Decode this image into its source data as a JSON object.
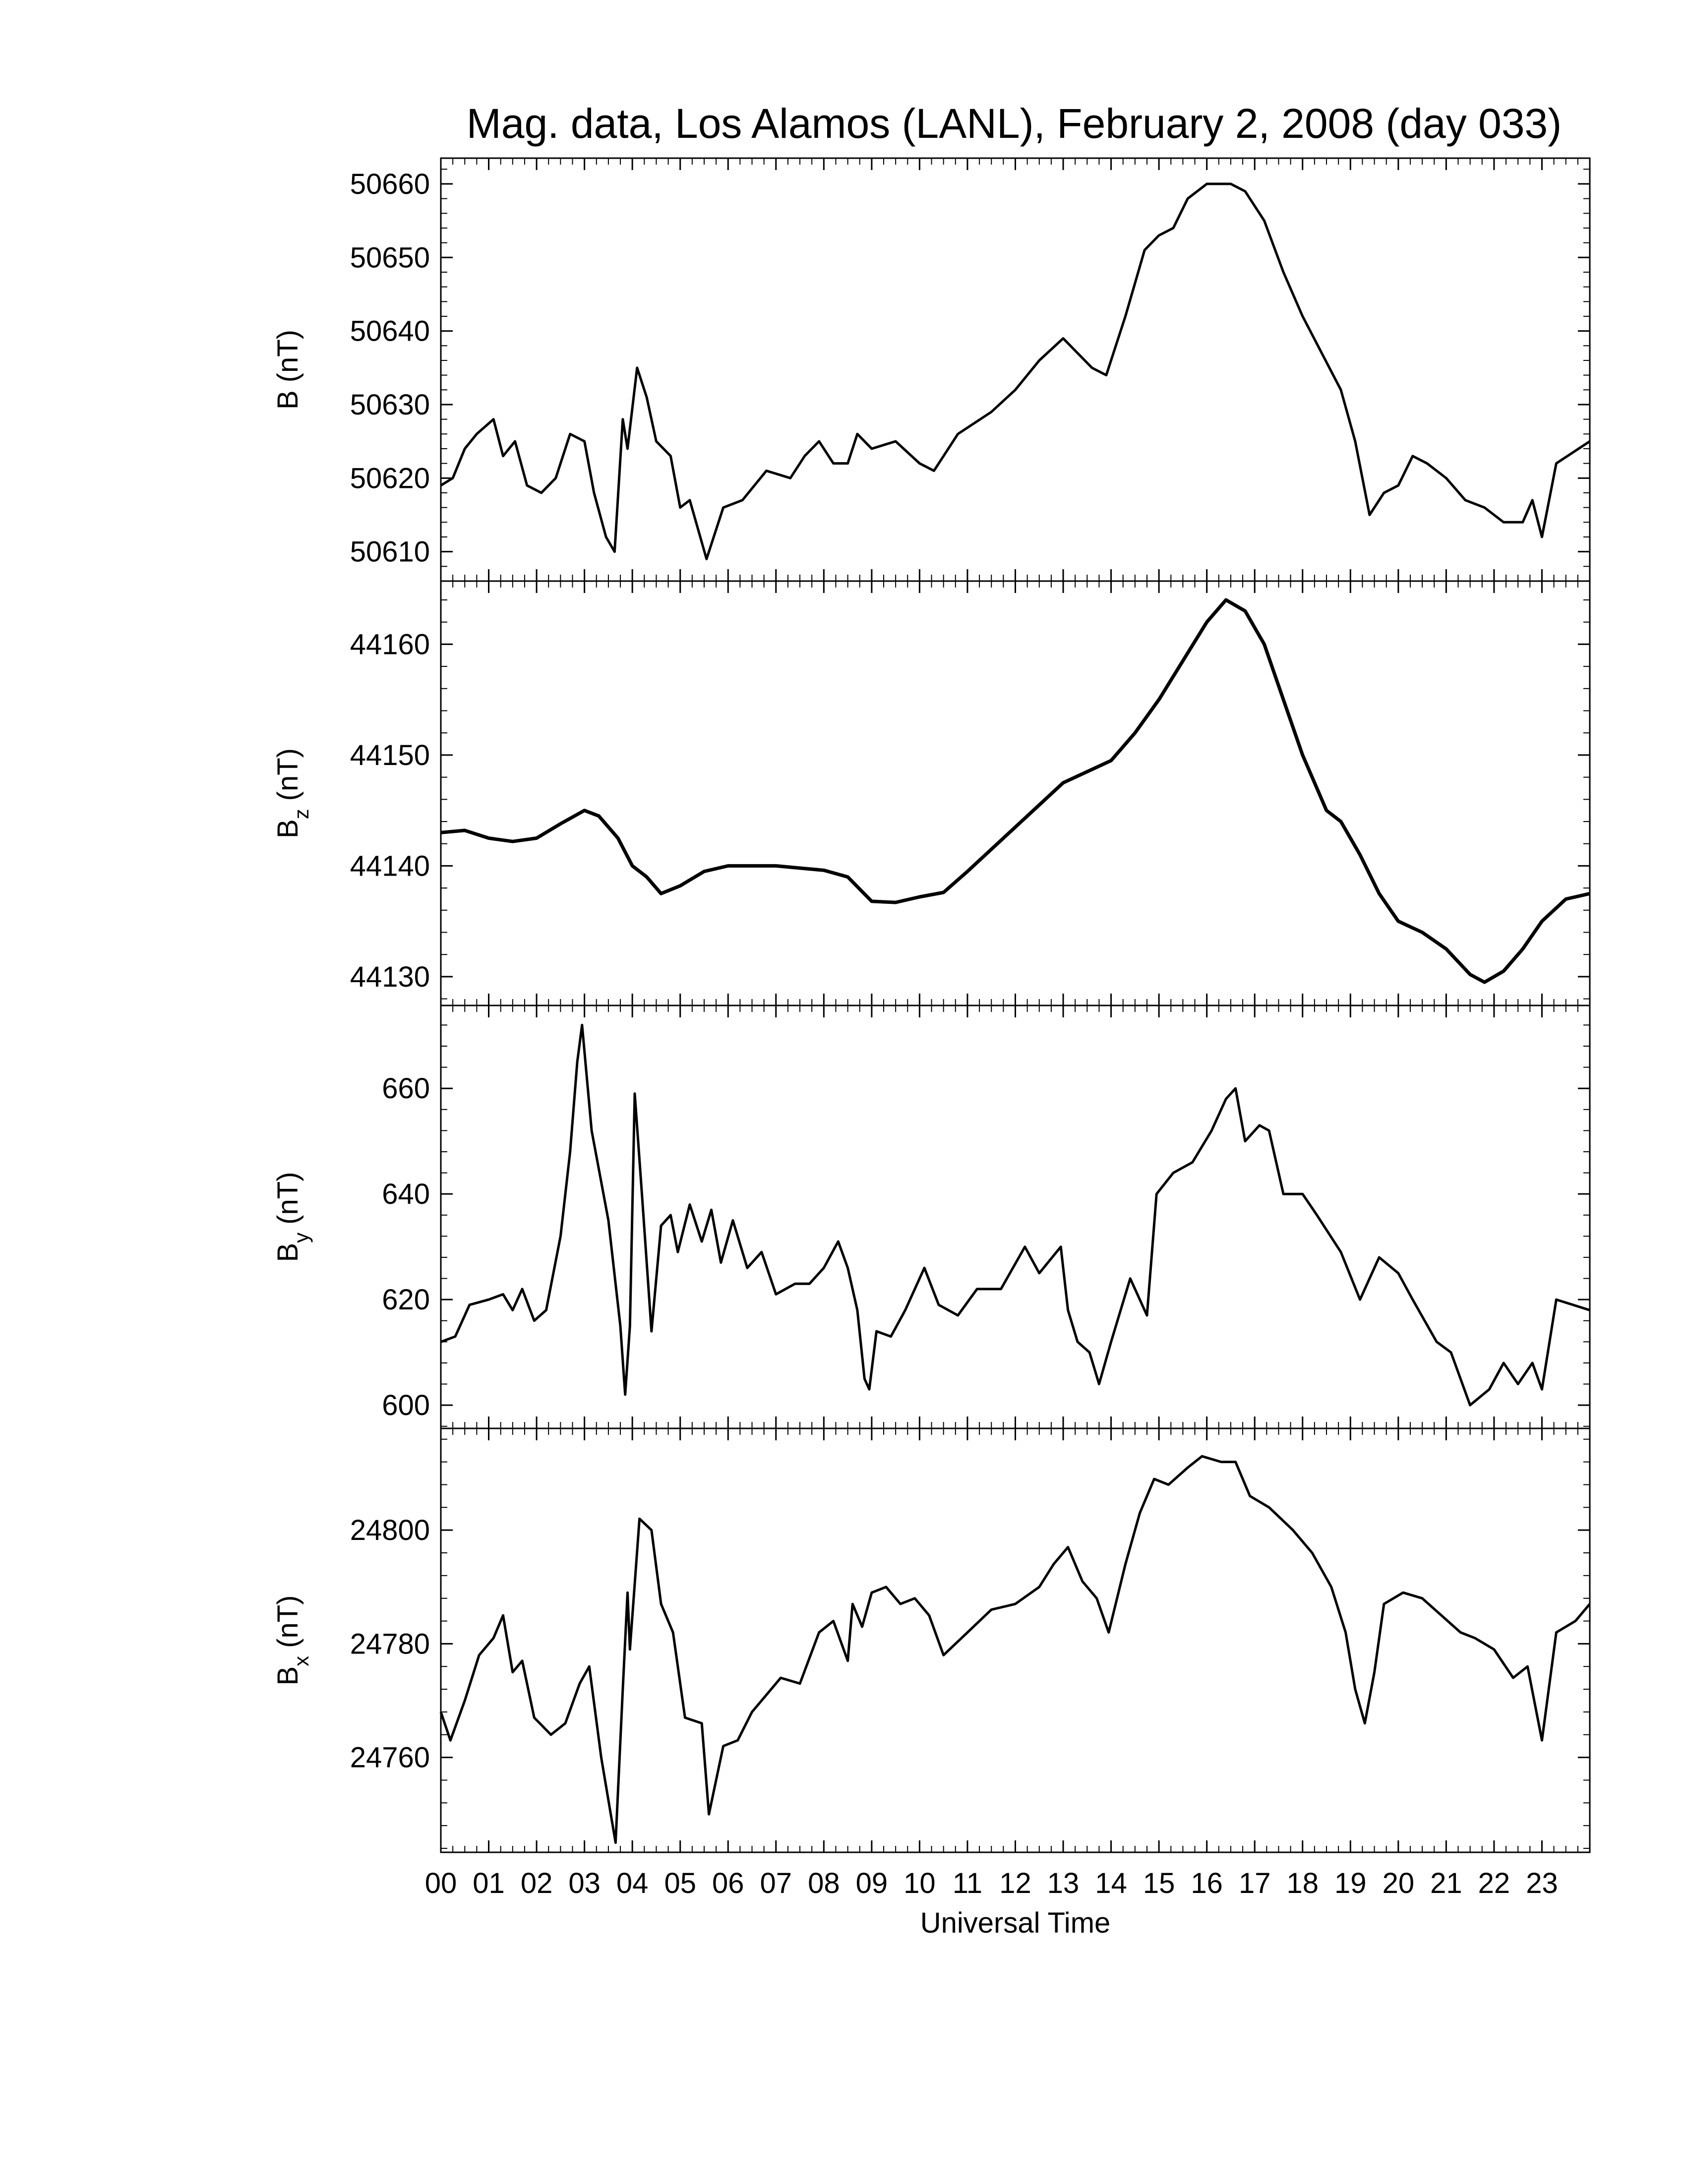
{
  "chart_data": [
    {
      "type": "line",
      "title": "Mag. data, Los Alamos (LANL), February 2, 2008 (day 033)",
      "ylabel_symbol": "B",
      "ylabel_unit": "(nT)",
      "color": "#000000",
      "xlim": [
        0,
        24
      ],
      "ylim": [
        50606,
        50663.5
      ],
      "yticks": [
        50610,
        50620,
        50630,
        50640,
        50650,
        50660
      ],
      "x": [
        0,
        0.25,
        0.5,
        0.75,
        1.1,
        1.3,
        1.55,
        1.8,
        2.1,
        2.4,
        2.7,
        3.0,
        3.2,
        3.45,
        3.63,
        3.8,
        3.9,
        4.1,
        4.3,
        4.5,
        4.8,
        5.0,
        5.2,
        5.55,
        5.9,
        6.3,
        6.8,
        7.3,
        7.6,
        7.9,
        8.2,
        8.5,
        8.7,
        9.0,
        9.5,
        10.0,
        10.3,
        10.8,
        11.5,
        12.0,
        12.5,
        13.0,
        13.3,
        13.6,
        13.9,
        14.3,
        14.7,
        15.0,
        15.3,
        15.6,
        16.0,
        16.5,
        16.8,
        17.2,
        17.6,
        18.0,
        18.4,
        18.8,
        19.1,
        19.4,
        19.7,
        20.0,
        20.3,
        20.6,
        21.0,
        21.4,
        21.8,
        22.2,
        22.6,
        22.8,
        23.0,
        23.3,
        24
      ],
      "values": [
        50619,
        50620,
        50624,
        50626,
        50628,
        50623,
        50625,
        50619,
        50618,
        50620,
        50626,
        50625,
        50618,
        50612,
        50610,
        50628,
        50624,
        50635,
        50631,
        50625,
        50623,
        50616,
        50617,
        50609,
        50616,
        50617,
        50621,
        50620,
        50623,
        50625,
        50622,
        50622,
        50626,
        50624,
        50625,
        50622,
        50621,
        50626,
        50629,
        50632,
        50636,
        50639,
        50637,
        50635,
        50634,
        50642,
        50651,
        50653,
        50654,
        50658,
        50660,
        50660,
        50659,
        50655,
        50648,
        50642,
        50637,
        50632,
        50625,
        50615,
        50618,
        50619,
        50623,
        50622,
        50620,
        50617,
        50616,
        50614,
        50614,
        50617,
        50612,
        50622,
        50625
      ]
    },
    {
      "type": "line",
      "ylabel_symbol": "B",
      "ylabel_subscript": "z",
      "ylabel_unit": "(nT)",
      "color": "#000000",
      "xlim": [
        0,
        24
      ],
      "ylim": [
        44127.4,
        44165.7
      ],
      "yticks": [
        44130,
        44140,
        44150,
        44160
      ],
      "x": [
        0,
        0.5,
        1.0,
        1.5,
        2.0,
        2.5,
        3.0,
        3.3,
        3.7,
        4.0,
        4.3,
        4.6,
        5.0,
        5.5,
        6.0,
        6.5,
        7.0,
        7.5,
        8.0,
        8.5,
        9.0,
        9.5,
        10.0,
        10.5,
        11.0,
        11.5,
        12.0,
        12.5,
        13.0,
        13.5,
        14.0,
        14.5,
        15.0,
        15.5,
        16.0,
        16.4,
        16.8,
        17.2,
        17.6,
        18.0,
        18.5,
        18.8,
        19.2,
        19.6,
        20.0,
        20.5,
        21.0,
        21.5,
        21.8,
        22.2,
        22.6,
        23.0,
        23.5,
        24
      ],
      "values": [
        44143,
        44143.2,
        44142.5,
        44142.2,
        44142.5,
        44143.8,
        44145,
        44144.5,
        44142.5,
        44140,
        44139,
        44137.5,
        44138.2,
        44139.5,
        44140,
        44140,
        44140,
        44139.8,
        44139.6,
        44139,
        44136.8,
        44136.7,
        44137.2,
        44137.6,
        44139.5,
        44141.5,
        44143.5,
        44145.5,
        44147.5,
        44148.5,
        44149.5,
        44152,
        44155,
        44158.5,
        44162,
        44164,
        44163,
        44160,
        44155,
        44150,
        44145,
        44144,
        44141,
        44137.5,
        44135,
        44134,
        44132.5,
        44130.2,
        44129.5,
        44130.5,
        44132.5,
        44135,
        44137,
        44137.5
      ]
    },
    {
      "type": "line",
      "ylabel_symbol": "B",
      "ylabel_subscript": "y",
      "ylabel_unit": "(nT)",
      "color": "#000000",
      "xlim": [
        0,
        24
      ],
      "ylim": [
        595.6,
        675.7
      ],
      "yticks": [
        600,
        620,
        640,
        660
      ],
      "x": [
        0,
        0.3,
        0.6,
        1.0,
        1.3,
        1.5,
        1.7,
        1.95,
        2.2,
        2.5,
        2.7,
        2.85,
        2.95,
        3.15,
        3.5,
        3.75,
        3.85,
        3.95,
        4.05,
        4.2,
        4.4,
        4.6,
        4.8,
        4.95,
        5.2,
        5.45,
        5.65,
        5.85,
        6.1,
        6.4,
        6.7,
        7.0,
        7.4,
        7.7,
        8.0,
        8.3,
        8.5,
        8.7,
        8.85,
        8.95,
        9.1,
        9.4,
        9.7,
        10.1,
        10.4,
        10.8,
        11.2,
        11.7,
        12.2,
        12.5,
        12.95,
        13.1,
        13.3,
        13.55,
        13.75,
        14.0,
        14.4,
        14.75,
        14.95,
        15.3,
        15.7,
        16.1,
        16.4,
        16.6,
        16.8,
        17.1,
        17.3,
        17.6,
        18.0,
        18.3,
        18.8,
        19.2,
        19.6,
        20.0,
        20.3,
        20.8,
        21.1,
        21.5,
        21.9,
        22.2,
        22.5,
        22.8,
        23.0,
        23.3,
        24
      ],
      "values": [
        612,
        613,
        619,
        620,
        621,
        618,
        622,
        616,
        618,
        632,
        648,
        665,
        672,
        652,
        635,
        615,
        602,
        615,
        659,
        640,
        614,
        634,
        636,
        629,
        638,
        631,
        637,
        627,
        635,
        626,
        629,
        621,
        623,
        623,
        626,
        631,
        626,
        618,
        605,
        603,
        614,
        613,
        618,
        626,
        619,
        617,
        622,
        622,
        630,
        625,
        630,
        618,
        612,
        610,
        604,
        612,
        624,
        617,
        640,
        644,
        646,
        652,
        658,
        660,
        650,
        653,
        652,
        640,
        640,
        636,
        629,
        620,
        628,
        625,
        620,
        612,
        610,
        600,
        603,
        608,
        604,
        608,
        603,
        620,
        618
      ]
    },
    {
      "type": "line",
      "ylabel_symbol": "B",
      "ylabel_subscript": "x",
      "ylabel_unit": "(nT)",
      "xlabel": "Universal Time",
      "color": "#000000",
      "xlim": [
        0,
        24
      ],
      "ylim": [
        24743.3,
        24817.9
      ],
      "yticks": [
        24760,
        24780,
        24800
      ],
      "xticks": [
        {
          "value": 0,
          "label": "00"
        },
        {
          "value": 1,
          "label": "01"
        },
        {
          "value": 2,
          "label": "02"
        },
        {
          "value": 3,
          "label": "03"
        },
        {
          "value": 4,
          "label": "04"
        },
        {
          "value": 5,
          "label": "05"
        },
        {
          "value": 6,
          "label": "06"
        },
        {
          "value": 7,
          "label": "07"
        },
        {
          "value": 8,
          "label": "08"
        },
        {
          "value": 9,
          "label": "09"
        },
        {
          "value": 10,
          "label": "10"
        },
        {
          "value": 11,
          "label": "11"
        },
        {
          "value": 12,
          "label": "12"
        },
        {
          "value": 13,
          "label": "13"
        },
        {
          "value": 14,
          "label": "14"
        },
        {
          "value": 15,
          "label": "15"
        },
        {
          "value": 16,
          "label": "16"
        },
        {
          "value": 17,
          "label": "17"
        },
        {
          "value": 18,
          "label": "18"
        },
        {
          "value": 19,
          "label": "19"
        },
        {
          "value": 20,
          "label": "20"
        },
        {
          "value": 21,
          "label": "21"
        },
        {
          "value": 22,
          "label": "22"
        },
        {
          "value": 23,
          "label": "23"
        }
      ],
      "x": [
        0,
        0.2,
        0.5,
        0.8,
        1.1,
        1.3,
        1.5,
        1.7,
        1.95,
        2.3,
        2.6,
        2.9,
        3.1,
        3.35,
        3.55,
        3.65,
        3.8,
        3.9,
        3.95,
        4.15,
        4.4,
        4.6,
        4.85,
        5.1,
        5.45,
        5.6,
        5.9,
        6.2,
        6.5,
        6.8,
        7.1,
        7.5,
        7.9,
        8.2,
        8.5,
        8.6,
        8.8,
        9.0,
        9.3,
        9.6,
        9.9,
        10.2,
        10.5,
        11.0,
        11.5,
        12.0,
        12.5,
        12.8,
        13.1,
        13.4,
        13.7,
        13.95,
        14.3,
        14.6,
        14.9,
        15.2,
        15.6,
        15.9,
        16.3,
        16.6,
        16.9,
        17.3,
        17.8,
        18.2,
        18.6,
        18.9,
        19.1,
        19.3,
        19.5,
        19.7,
        20.1,
        20.5,
        20.9,
        21.3,
        21.6,
        22.0,
        22.4,
        22.7,
        23.0,
        23.3,
        23.7,
        24
      ],
      "values": [
        24768,
        24763,
        24770,
        24778,
        24781,
        24785,
        24775,
        24777,
        24767,
        24764,
        24766,
        24773,
        24776,
        24760,
        24750,
        24745,
        24772,
        24789,
        24779,
        24802,
        24800,
        24787,
        24782,
        24767,
        24766,
        24750,
        24762,
        24763,
        24768,
        24771,
        24774,
        24773,
        24782,
        24784,
        24777,
        24787,
        24783,
        24789,
        24790,
        24787,
        24788,
        24785,
        24778,
        24782,
        24786,
        24787,
        24790,
        24794,
        24797,
        24791,
        24788,
        24782,
        24794,
        24803,
        24809,
        24808,
        24811,
        24813,
        24812,
        24812,
        24806,
        24804,
        24800,
        24796,
        24790,
        24782,
        24772,
        24766,
        24775,
        24787,
        24789,
        24788,
        24785,
        24782,
        24781,
        24779,
        24774,
        24776,
        24763,
        24782,
        24784,
        24787
      ]
    }
  ]
}
